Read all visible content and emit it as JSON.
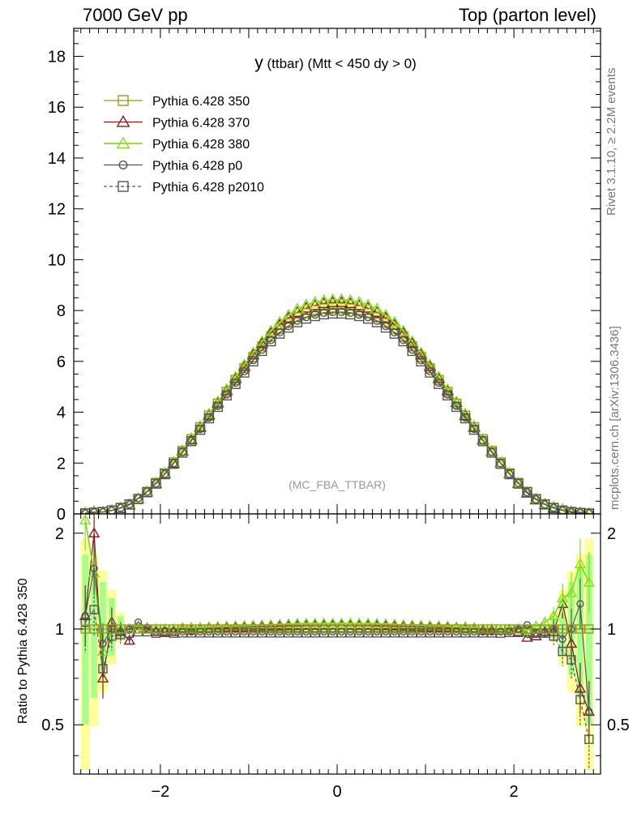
{
  "header": {
    "left": "7000 GeV pp",
    "right": "Top (parton level)"
  },
  "side_labels": {
    "rivet": "Rivet 3.1.10, ≥ 2.2M events",
    "mcplots": "mcplots.cern.ch [arXiv:1306.3436]"
  },
  "plot": {
    "title_main": "y",
    "title_rest": " (ttbar) (Mtt < 450 dy > 0)",
    "watermark": "(MC_FBA_TTBAR)",
    "ratio_ylabel": "Ratio to Pythia 6.428 350"
  },
  "chart_data": {
    "type": "line",
    "title": "y (ttbar) (Mtt < 450 dy > 0)",
    "xlabel": "",
    "ylabel": "",
    "ratio_ylabel": "Ratio to Pythia 6.428 350",
    "xlim": [
      -2.98,
      2.98
    ],
    "ylim": [
      0,
      19.1
    ],
    "ratio_ylim": [
      0.35,
      2.3
    ],
    "x_ticks": [
      -2,
      0,
      2
    ],
    "y_ticks": [
      0,
      2,
      4,
      6,
      8,
      10,
      12,
      14,
      16,
      18
    ],
    "ratio_ticks": [
      0.5,
      1,
      2
    ],
    "legend_position": "top-left",
    "x": [
      -2.85,
      -2.75,
      -2.65,
      -2.55,
      -2.45,
      -2.35,
      -2.25,
      -2.15,
      -2.05,
      -1.95,
      -1.85,
      -1.75,
      -1.65,
      -1.55,
      -1.45,
      -1.35,
      -1.25,
      -1.15,
      -1.05,
      -0.95,
      -0.85,
      -0.75,
      -0.65,
      -0.55,
      -0.45,
      -0.35,
      -0.25,
      -0.15,
      -0.05,
      0.05,
      0.15,
      0.25,
      0.35,
      0.45,
      0.55,
      0.65,
      0.75,
      0.85,
      0.95,
      1.05,
      1.15,
      1.25,
      1.35,
      1.45,
      1.55,
      1.65,
      1.75,
      1.85,
      1.95,
      2.05,
      2.15,
      2.25,
      2.35,
      2.45,
      2.55,
      2.65,
      2.75,
      2.85
    ],
    "series": [
      {
        "name": "Pythia 6.428 350",
        "color": "#9a9a1e",
        "marker": "square",
        "dash": "solid",
        "values": [
          0.02,
          0.04,
          0.08,
          0.14,
          0.24,
          0.38,
          0.59,
          0.87,
          1.22,
          1.6,
          2.03,
          2.48,
          2.94,
          3.41,
          3.87,
          4.34,
          4.8,
          5.27,
          5.73,
          6.17,
          6.59,
          6.98,
          7.29,
          7.54,
          7.75,
          7.9,
          8.0,
          8.07,
          8.1,
          8.1,
          8.07,
          8.0,
          7.9,
          7.75,
          7.54,
          7.29,
          6.98,
          6.59,
          6.17,
          5.73,
          5.27,
          4.8,
          4.34,
          3.87,
          3.41,
          2.94,
          2.48,
          2.03,
          1.6,
          1.22,
          0.87,
          0.59,
          0.38,
          0.24,
          0.14,
          0.08,
          0.04,
          0.02
        ]
      },
      {
        "name": "Pythia 6.428 370",
        "color": "#8b1a1a",
        "marker": "triangle",
        "dash": "solid",
        "values": [
          0.02,
          0.08,
          0.07,
          0.14,
          0.23,
          0.35,
          0.6,
          0.87,
          1.19,
          1.57,
          1.99,
          2.48,
          2.91,
          3.41,
          3.89,
          4.37,
          4.85,
          5.33,
          5.8,
          6.26,
          6.7,
          7.11,
          7.43,
          7.71,
          7.93,
          8.1,
          8.2,
          8.28,
          8.32,
          8.32,
          8.28,
          8.2,
          8.1,
          7.93,
          7.71,
          7.43,
          7.11,
          6.7,
          6.26,
          5.8,
          5.33,
          4.85,
          4.39,
          3.87,
          3.41,
          2.91,
          2.46,
          2.01,
          1.59,
          1.2,
          0.82,
          0.56,
          0.37,
          0.23,
          0.17,
          0.05,
          0.03,
          0.01
        ]
      },
      {
        "name": "Pythia 6.428 380",
        "color": "#88dd22",
        "marker": "triangle",
        "dash": "solid",
        "values": [
          0.04,
          0.06,
          0.08,
          0.14,
          0.24,
          0.38,
          0.6,
          0.88,
          1.22,
          1.6,
          2.03,
          2.5,
          2.97,
          3.45,
          3.93,
          4.41,
          4.89,
          5.38,
          5.86,
          6.33,
          6.78,
          7.19,
          7.54,
          7.82,
          8.06,
          8.22,
          8.33,
          8.4,
          8.43,
          8.43,
          8.4,
          8.33,
          8.22,
          8.06,
          7.82,
          7.54,
          7.19,
          6.78,
          6.33,
          5.86,
          5.38,
          4.89,
          4.41,
          3.93,
          3.45,
          2.94,
          2.48,
          2.01,
          1.6,
          1.22,
          0.86,
          0.6,
          0.4,
          0.27,
          0.18,
          0.1,
          0.06,
          0.02
        ]
      },
      {
        "name": "Pythia 6.428 p0",
        "color": "#555555",
        "marker": "circle",
        "dash": "solid",
        "values": [
          0.02,
          0.06,
          0.07,
          0.13,
          0.24,
          0.38,
          0.62,
          0.88,
          1.2,
          1.57,
          1.99,
          2.43,
          2.88,
          3.34,
          3.79,
          4.25,
          4.7,
          5.16,
          5.61,
          6.05,
          6.46,
          6.84,
          7.14,
          7.39,
          7.6,
          7.74,
          7.84,
          7.91,
          7.94,
          7.94,
          7.91,
          7.84,
          7.74,
          7.6,
          7.39,
          7.14,
          6.84,
          6.46,
          6.05,
          5.61,
          5.16,
          4.7,
          4.25,
          3.79,
          3.34,
          2.88,
          2.43,
          1.99,
          1.57,
          1.22,
          0.85,
          0.57,
          0.37,
          0.24,
          0.13,
          0.08,
          0.05,
          0.02
        ]
      },
      {
        "name": "Pythia 6.428 p2010",
        "color": "#555555",
        "marker": "square",
        "dash": "dashed",
        "values": [
          0.02,
          0.05,
          0.07,
          0.13,
          0.23,
          0.37,
          0.58,
          0.85,
          1.19,
          1.56,
          1.97,
          2.41,
          2.86,
          3.31,
          3.76,
          4.21,
          4.66,
          5.11,
          5.56,
          6.0,
          6.41,
          6.79,
          7.09,
          7.33,
          7.54,
          7.68,
          7.78,
          7.85,
          7.88,
          7.88,
          7.85,
          7.78,
          7.68,
          7.54,
          7.33,
          7.09,
          6.79,
          6.41,
          6.0,
          5.56,
          5.11,
          4.66,
          4.21,
          3.76,
          3.31,
          2.86,
          2.41,
          1.97,
          1.56,
          1.19,
          0.85,
          0.57,
          0.37,
          0.23,
          0.12,
          0.07,
          0.04,
          0.01
        ]
      }
    ],
    "ratio_series": [
      {
        "name": "Pythia 6.428 370",
        "values": [
          1.1,
          2.0,
          0.7,
          1.05,
          0.98,
          0.92,
          1.02,
          1.0,
          0.98,
          0.98,
          0.98,
          1.0,
          0.99,
          1.0,
          1.005,
          1.007,
          1.01,
          1.012,
          1.013,
          1.015,
          1.017,
          1.018,
          1.02,
          1.022,
          1.023,
          1.025,
          1.025,
          1.026,
          1.027,
          1.027,
          1.026,
          1.025,
          1.025,
          1.023,
          1.022,
          1.02,
          1.018,
          1.017,
          1.015,
          1.013,
          1.012,
          1.01,
          1.01,
          1.0,
          1.0,
          0.99,
          0.99,
          0.99,
          0.995,
          0.98,
          0.94,
          0.95,
          0.98,
          0.98,
          1.2,
          0.9,
          0.65,
          0.55
        ]
      },
      {
        "name": "Pythia 6.428 380",
        "values": [
          2.2,
          1.5,
          0.85,
          1.0,
          1.0,
          1.0,
          1.02,
          1.01,
          1.0,
          1.0,
          1.0,
          1.01,
          1.01,
          1.01,
          1.015,
          1.017,
          1.02,
          1.022,
          1.024,
          1.026,
          1.029,
          1.03,
          1.034,
          1.037,
          1.04,
          1.041,
          1.041,
          1.041,
          1.041,
          1.041,
          1.041,
          1.041,
          1.041,
          1.04,
          1.037,
          1.034,
          1.03,
          1.029,
          1.026,
          1.024,
          1.022,
          1.02,
          1.015,
          1.015,
          1.01,
          1.0,
          1.0,
          0.99,
          1.0,
          1.0,
          0.99,
          1.02,
          1.05,
          1.1,
          1.25,
          1.3,
          1.6,
          1.4
        ]
      },
      {
        "name": "Pythia 6.428 p0",
        "values": [
          1.1,
          1.55,
          0.9,
          1.0,
          0.98,
          1.0,
          1.05,
          1.01,
          0.98,
          0.98,
          0.98,
          0.98,
          0.98,
          0.98,
          0.98,
          0.98,
          0.98,
          0.98,
          0.98,
          0.98,
          0.98,
          0.98,
          0.98,
          0.98,
          0.98,
          0.98,
          0.98,
          0.98,
          0.98,
          0.98,
          0.98,
          0.98,
          0.98,
          0.98,
          0.98,
          0.98,
          0.98,
          0.98,
          0.98,
          0.98,
          0.98,
          0.98,
          0.98,
          0.98,
          0.98,
          0.98,
          0.98,
          0.98,
          0.98,
          1.0,
          1.03,
          0.97,
          0.97,
          1.0,
          0.93,
          1.0,
          1.2,
          0.55
        ]
      },
      {
        "name": "Pythia 6.428 p2010",
        "values": [
          1.05,
          1.15,
          0.75,
          0.95,
          0.96,
          0.97,
          0.98,
          0.98,
          0.97,
          0.975,
          0.97,
          0.972,
          0.972,
          0.972,
          0.972,
          0.972,
          0.972,
          0.972,
          0.972,
          0.972,
          0.972,
          0.972,
          0.972,
          0.972,
          0.972,
          0.972,
          0.972,
          0.972,
          0.972,
          0.972,
          0.972,
          0.972,
          0.972,
          0.972,
          0.972,
          0.972,
          0.972,
          0.972,
          0.972,
          0.972,
          0.972,
          0.972,
          0.972,
          0.972,
          0.972,
          0.972,
          0.972,
          0.97,
          0.975,
          0.975,
          0.98,
          0.97,
          0.97,
          0.95,
          0.85,
          0.8,
          0.6,
          0.45
        ]
      }
    ]
  }
}
